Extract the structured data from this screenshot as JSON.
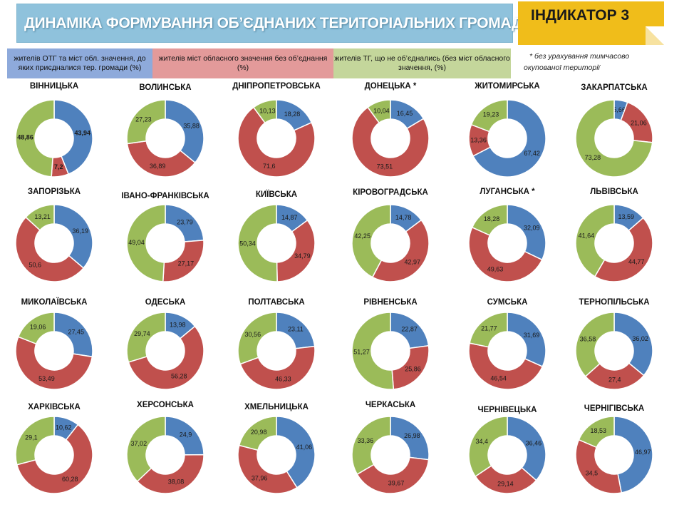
{
  "header": {
    "title": "ДИНАМІКА ФОРМУВАННЯ ОБ’ЄДНАНИХ ТЕРИТОРІАЛЬНИХ ГРОМАД",
    "indicator": "ІНДИКАТОР 3"
  },
  "legend": {
    "blue": "жителів ОТГ та міст обл. значення, до яких приєдналися тер. громади (%)",
    "red": "жителів міст обласного значення без об’єднання (%)",
    "green": "жителів ТГ, що не об’єднались (без міст обласного значення, (%)"
  },
  "note": {
    "line1": "* без урахування тимчасово",
    "line2": "окупованої території"
  },
  "colors": {
    "blue": "#4f81bd",
    "red": "#c0504d",
    "green": "#9bbb59",
    "title_bg": "#8fc2dc",
    "indicator_bg": "#f0bd1a"
  },
  "chart_data": [
    {
      "type": "pie",
      "title": "ВІННИЦЬКА",
      "values": [
        43.94,
        7.2,
        48.86
      ],
      "labels": [
        "43,94",
        "7,2",
        "48,86"
      ]
    },
    {
      "type": "pie",
      "title": "ВОЛИНСЬКА",
      "values": [
        35.88,
        36.89,
        27.23
      ],
      "labels": [
        "35,88",
        "36,89",
        "27,23"
      ]
    },
    {
      "type": "pie",
      "title": "ДНІПРОПЕТРОВСЬКА",
      "values": [
        18.28,
        71.6,
        10.13
      ],
      "labels": [
        "18,28",
        "71,6",
        "10,13"
      ]
    },
    {
      "type": "pie",
      "title": "ДОНЕЦЬКА *",
      "values": [
        16.45,
        73.51,
        10.04
      ],
      "labels": [
        "16,45",
        "73,51",
        "10,04"
      ]
    },
    {
      "type": "pie",
      "title": "ЖИТОМИРСЬКА",
      "values": [
        67.42,
        13.36,
        19.23
      ],
      "labels": [
        "67,42",
        "13,36",
        "19,23"
      ]
    },
    {
      "type": "pie",
      "title": "ЗАКАРПАТСЬКА",
      "values": [
        5.66,
        21.06,
        73.28
      ],
      "labels": [
        "5,66",
        "21,06",
        "73,28"
      ]
    },
    {
      "type": "pie",
      "title": "ЗАПОРІЗЬКА",
      "values": [
        36.19,
        50.6,
        13.21
      ],
      "labels": [
        "36,19",
        "50,6",
        "13,21"
      ]
    },
    {
      "type": "pie",
      "title": "ІВАНО-ФРАНКІВСЬКА",
      "values": [
        23.79,
        27.17,
        49.04
      ],
      "labels": [
        "23,79",
        "27,17",
        "49,04"
      ]
    },
    {
      "type": "pie",
      "title": "КИЇВСЬКА",
      "values": [
        14.87,
        34.79,
        50.34
      ],
      "labels": [
        "14,87",
        "34,79",
        "50,34"
      ]
    },
    {
      "type": "pie",
      "title": "КІРОВОГРАДСЬКА",
      "values": [
        14.78,
        42.97,
        42.25
      ],
      "labels": [
        "14,78",
        "42,97",
        "42,25"
      ]
    },
    {
      "type": "pie",
      "title": "ЛУГАНСЬКА *",
      "values": [
        32.09,
        49.63,
        18.28
      ],
      "labels": [
        "32,09",
        "49,63",
        "18,28"
      ]
    },
    {
      "type": "pie",
      "title": "ЛЬВІВСЬКА",
      "values": [
        13.59,
        44.77,
        41.64
      ],
      "labels": [
        "13,59",
        "44,77",
        "41,64"
      ]
    },
    {
      "type": "pie",
      "title": "МИКОЛАЇВСЬКА",
      "values": [
        27.45,
        53.49,
        19.06
      ],
      "labels": [
        "27,45",
        "53,49",
        "19,06"
      ]
    },
    {
      "type": "pie",
      "title": "ОДЕСЬКА",
      "values": [
        13.98,
        56.28,
        29.74
      ],
      "labels": [
        "13,98",
        "56,28",
        "29,74"
      ]
    },
    {
      "type": "pie",
      "title": "ПОЛТАВСЬКА",
      "values": [
        23.11,
        46.33,
        30.56
      ],
      "labels": [
        "23,11",
        "46,33",
        "30,56"
      ]
    },
    {
      "type": "pie",
      "title": "РІВНЕНСЬКА",
      "values": [
        22.87,
        25.86,
        51.27
      ],
      "labels": [
        "22,87",
        "25,86",
        "51,27"
      ]
    },
    {
      "type": "pie",
      "title": "СУМСЬКА",
      "values": [
        31.69,
        46.54,
        21.77
      ],
      "labels": [
        "31,69",
        "46,54",
        "21,77"
      ]
    },
    {
      "type": "pie",
      "title": "ТЕРНОПІЛЬСЬКА",
      "values": [
        36.02,
        27.4,
        36.58
      ],
      "labels": [
        "36,02",
        "27,4",
        "36,58"
      ]
    },
    {
      "type": "pie",
      "title": "ХАРКІВСЬКА",
      "values": [
        10.62,
        60.28,
        29.1
      ],
      "labels": [
        "10,62",
        "60,28",
        "29,1"
      ]
    },
    {
      "type": "pie",
      "title": "ХЕРСОНСЬКА",
      "values": [
        24.9,
        38.08,
        37.02
      ],
      "labels": [
        "24,9",
        "38,08",
        "37,02"
      ]
    },
    {
      "type": "pie",
      "title": "ХМЕЛЬНИЦЬКА",
      "values": [
        41.06,
        37.96,
        20.98
      ],
      "labels": [
        "41,06",
        "37,96",
        "20,98"
      ]
    },
    {
      "type": "pie",
      "title": "ЧЕРКАСЬКА",
      "values": [
        26.98,
        39.67,
        33.36
      ],
      "labels": [
        "26,98",
        "39,67",
        "33,36"
      ]
    },
    {
      "type": "pie",
      "title": "ЧЕРНІВЕЦЬКА",
      "values": [
        36.46,
        29.14,
        34.4
      ],
      "labels": [
        "36,46",
        "29,14",
        "34,4"
      ]
    },
    {
      "type": "pie",
      "title": "ЧЕРНІГІВСЬКА",
      "values": [
        46.97,
        34.5,
        18.53
      ],
      "labels": [
        "46,97",
        "34,5",
        "18,53"
      ]
    }
  ]
}
